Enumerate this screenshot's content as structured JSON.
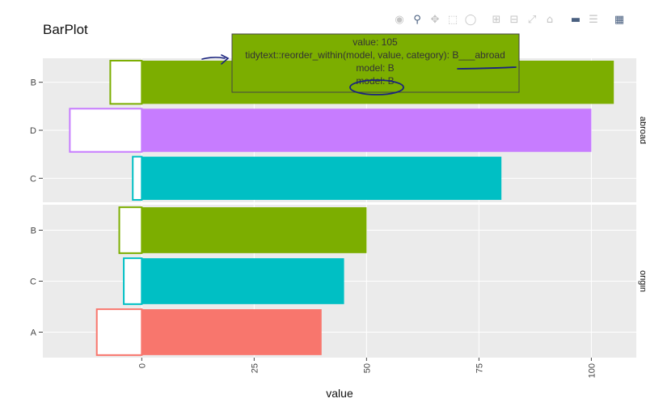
{
  "chart_data": {
    "type": "bar",
    "orientation": "horizontal",
    "title": "BarPlot",
    "xlabel": "value",
    "ylabel": "",
    "xlim": [
      -22,
      110
    ],
    "x_ticks": [
      0,
      25,
      50,
      75,
      100
    ],
    "grid": true,
    "legend": "none",
    "panels": [
      {
        "strip_label": "abroad",
        "bars": [
          {
            "category": "B",
            "value": 105,
            "outline_value": -7,
            "color": "#7CAE00"
          },
          {
            "category": "D",
            "value": 100,
            "outline_value": -16,
            "color": "#C77CFF"
          },
          {
            "category": "C",
            "value": 80,
            "outline_value": -2,
            "color": "#00BFC4"
          }
        ]
      },
      {
        "strip_label": "origin",
        "bars": [
          {
            "category": "B",
            "value": 50,
            "outline_value": -5,
            "color": "#7CAE00"
          },
          {
            "category": "C",
            "value": 45,
            "outline_value": -4,
            "color": "#00BFC4"
          },
          {
            "category": "A",
            "value": 40,
            "outline_value": -10,
            "color": "#F8766D"
          }
        ]
      }
    ],
    "tooltip": {
      "lines": [
        "value: 105",
        "tidytext::reorder_within(model, value, category): B___abroad",
        "model: B",
        "model: B"
      ],
      "background": "#7CAE00",
      "border": "#444444"
    }
  },
  "modebar": {
    "icons": [
      "camera-icon",
      "zoom-icon",
      "pan-icon",
      "box-select-icon",
      "lasso-select-icon",
      "zoom-in-icon",
      "zoom-out-icon",
      "autoscale-icon",
      "reset-axes-icon",
      "hover-closest-icon",
      "hover-compare-icon",
      "plotly-logo-icon"
    ]
  },
  "colors": {
    "panel_bg": "#EBEBEB",
    "grid": "#FFFFFF",
    "annotation_ink": "#1a237e"
  }
}
